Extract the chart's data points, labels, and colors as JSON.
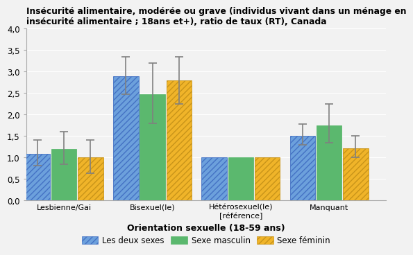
{
  "title": "Insécurité alimentaire, modérée ou grave (individus vivant dans un ménage en\ninsécurité alimentaire ; 18ans et+), ratio de taux (RT), Canada",
  "xlabel": "Orientation sexuelle (18-59 ans)",
  "categories": [
    "Lesbienne/Gai",
    "Bisexuel(le)",
    "Hétérosexuel(le)\n[référence]",
    "Manquant"
  ],
  "series": {
    "Les deux sexes": {
      "values": [
        1.08,
        2.9,
        1.0,
        1.5
      ],
      "yerr_low": [
        0.27,
        0.42,
        0.0,
        0.2
      ],
      "yerr_high": [
        0.33,
        0.45,
        0.0,
        0.28
      ],
      "color": "#6CA0DC",
      "edgecolor": "#4472C4",
      "hatch": "////"
    },
    "Sexe masculin": {
      "values": [
        1.2,
        2.48,
        1.0,
        1.75
      ],
      "yerr_low": [
        0.35,
        0.68,
        0.0,
        0.4
      ],
      "yerr_high": [
        0.4,
        0.72,
        0.0,
        0.5
      ],
      "color": "#5BB86E",
      "edgecolor": "#5BB86E",
      "hatch": ""
    },
    "Sexe féminin": {
      "values": [
        1.01,
        2.8,
        1.0,
        1.22
      ],
      "yerr_low": [
        0.38,
        0.55,
        0.0,
        0.22
      ],
      "yerr_high": [
        0.4,
        0.55,
        0.0,
        0.28
      ],
      "color": "#F0B429",
      "edgecolor": "#C8941A",
      "hatch": "////"
    }
  },
  "ylim": [
    0,
    4.0
  ],
  "yticks": [
    0.0,
    0.5,
    1.0,
    1.5,
    2.0,
    2.5,
    3.0,
    3.5,
    4.0
  ],
  "bg_color": "#F2F2F2",
  "plot_bg_color": "#F2F2F2",
  "bar_width": 0.2,
  "group_positions": [
    0.25,
    0.95,
    1.65,
    2.35
  ],
  "ecolor": "#808080",
  "capsize": 4
}
